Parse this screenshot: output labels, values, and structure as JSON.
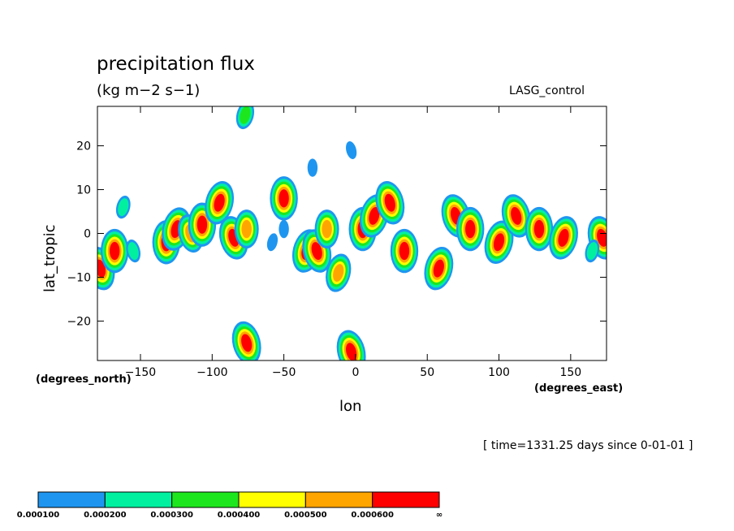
{
  "chart_data": {
    "type": "heatmap",
    "title": "precipitation flux",
    "units": "(kg m−2 s−1)",
    "model_label": "LASG_control",
    "xlabel": "lon",
    "ylabel": "lat_tropic",
    "x_units": "(degrees_east)",
    "y_units": "(degrees_north)",
    "timestamp": "[ time=1331.25 days since 0-01-01 ]",
    "xlim": [
      -180,
      175
    ],
    "ylim": [
      -29,
      29
    ],
    "x_ticks": [
      -150,
      -100,
      -50,
      0,
      50,
      100,
      150
    ],
    "y_ticks": [
      -20,
      -10,
      0,
      10,
      20
    ],
    "levels": [
      {
        "value": "0.000100",
        "color": "#1e96f0"
      },
      {
        "value": "0.000200",
        "color": "#00f0a0"
      },
      {
        "value": "0.000300",
        "color": "#1ee61e"
      },
      {
        "value": "0.000400",
        "color": "#ffff00"
      },
      {
        "value": "0.000500",
        "color": "#ffa500"
      },
      {
        "value": "0.000600",
        "color": "#ff0000"
      }
    ],
    "level_end_label": "∞",
    "cells": [
      {
        "lon": -178,
        "lat": -8,
        "level": 6
      },
      {
        "lon": -168,
        "lat": -4,
        "level": 6
      },
      {
        "lon": -162,
        "lat": 6,
        "level": 2
      },
      {
        "lon": -155,
        "lat": -4,
        "level": 2
      },
      {
        "lon": -132,
        "lat": -2,
        "level": 6
      },
      {
        "lon": -125,
        "lat": 1,
        "level": 6
      },
      {
        "lon": -115,
        "lat": 0,
        "level": 5
      },
      {
        "lon": -107,
        "lat": 2,
        "level": 6
      },
      {
        "lon": -95,
        "lat": 7,
        "level": 6
      },
      {
        "lon": -85,
        "lat": -1,
        "level": 6
      },
      {
        "lon": -76,
        "lat": 1,
        "level": 5
      },
      {
        "lon": -77,
        "lat": 27,
        "level": 3
      },
      {
        "lon": -76,
        "lat": -25,
        "level": 6
      },
      {
        "lon": -50,
        "lat": 8,
        "level": 6
      },
      {
        "lon": -34,
        "lat": -4,
        "level": 6
      },
      {
        "lon": -27,
        "lat": -4,
        "level": 6
      },
      {
        "lon": -20,
        "lat": 1,
        "level": 5
      },
      {
        "lon": -12,
        "lat": -9,
        "level": 5
      },
      {
        "lon": -3,
        "lat": -27,
        "level": 6
      },
      {
        "lon": 5,
        "lat": 1,
        "level": 6
      },
      {
        "lon": 13,
        "lat": 4,
        "level": 6
      },
      {
        "lon": 24,
        "lat": 7,
        "level": 6
      },
      {
        "lon": 34,
        "lat": -4,
        "level": 6
      },
      {
        "lon": 58,
        "lat": -8,
        "level": 6
      },
      {
        "lon": 70,
        "lat": 4,
        "level": 6
      },
      {
        "lon": 80,
        "lat": 1,
        "level": 6
      },
      {
        "lon": 100,
        "lat": -2,
        "level": 6
      },
      {
        "lon": 112,
        "lat": 4,
        "level": 6
      },
      {
        "lon": 128,
        "lat": 1,
        "level": 6
      },
      {
        "lon": 145,
        "lat": -1,
        "level": 6
      },
      {
        "lon": 172,
        "lat": -1,
        "level": 6
      },
      {
        "lon": -50,
        "lat": 1,
        "level": 1
      },
      {
        "lon": -58,
        "lat": -2,
        "level": 1
      },
      {
        "lon": -3,
        "lat": 19,
        "level": 1
      },
      {
        "lon": -30,
        "lat": 15,
        "level": 1
      },
      {
        "lon": 165,
        "lat": -4,
        "level": 2
      }
    ]
  }
}
